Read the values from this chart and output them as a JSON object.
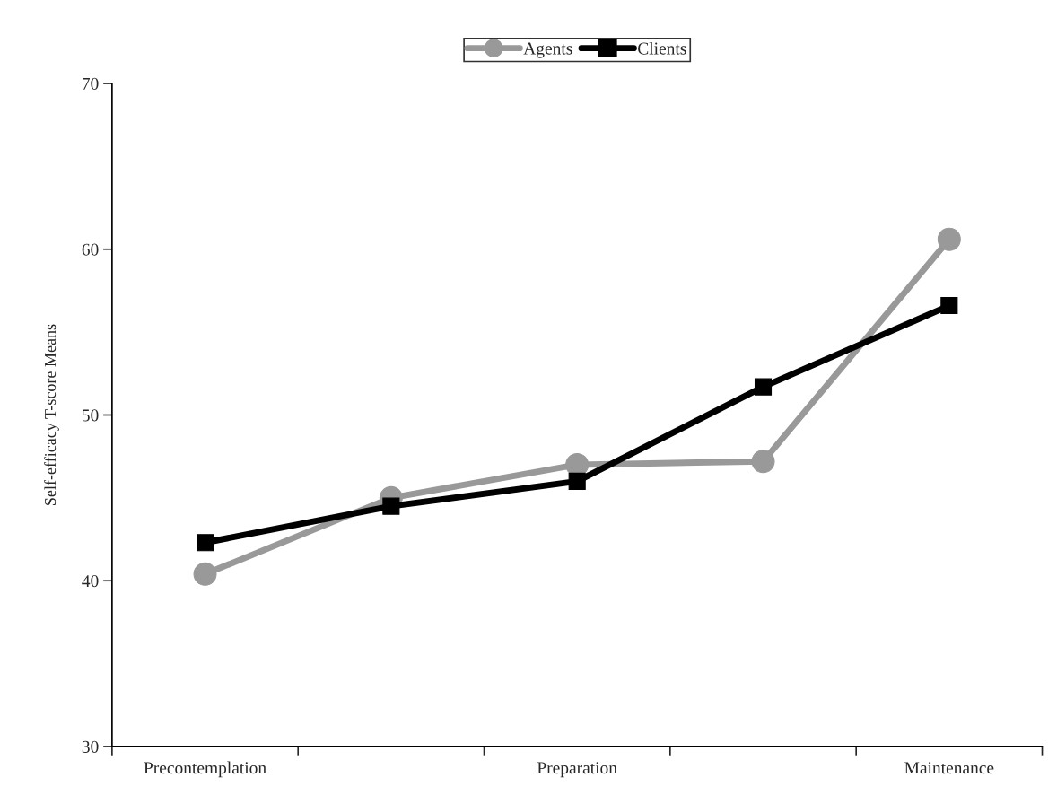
{
  "chart_data": {
    "type": "line",
    "ylabel": "Self-efficacy T-score Means",
    "categories": [
      "Precontemplation",
      null,
      "Preparation",
      null,
      "Maintenance"
    ],
    "series": [
      {
        "name": "Agents",
        "color": "#999999",
        "marker": "circle",
        "values": [
          40.4,
          45.0,
          47.0,
          47.2,
          60.6
        ]
      },
      {
        "name": "Clients",
        "color": "#000000",
        "marker": "square",
        "values": [
          42.3,
          44.5,
          46.0,
          51.7,
          56.6
        ]
      }
    ],
    "ylim": [
      30,
      70
    ],
    "yticks": [
      30,
      40,
      50,
      60,
      70
    ],
    "grid": false,
    "legend": "top"
  }
}
